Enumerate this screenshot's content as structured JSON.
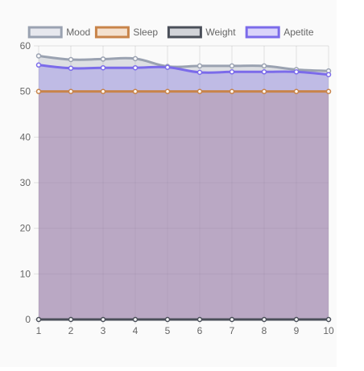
{
  "chart_data": {
    "type": "area",
    "x": [
      1,
      2,
      3,
      4,
      5,
      6,
      7,
      8,
      9,
      10
    ],
    "ylim": [
      0,
      60
    ],
    "yticks": [
      0,
      10,
      20,
      30,
      40,
      50,
      60
    ],
    "grid": true,
    "legend": "top",
    "series": [
      {
        "name": "Mood",
        "values": [
          57.8,
          57.0,
          57.1,
          57.2,
          55.5,
          55.6,
          55.6,
          55.6,
          54.8,
          54.5
        ],
        "stroke": "#9aa2b1",
        "fill": "#e7e8ee"
      },
      {
        "name": "Sleep",
        "values": [
          50,
          50,
          50,
          50,
          50,
          50,
          50,
          50,
          50,
          50
        ],
        "stroke": "#c8844a",
        "fill": "#f4e1cf"
      },
      {
        "name": "Weight",
        "values": [
          0,
          0,
          0,
          0,
          0,
          0,
          0,
          0,
          0,
          0
        ],
        "stroke": "#4a4f59",
        "fill": "#d2d4d9"
      },
      {
        "name": "Apetite",
        "values": [
          55.8,
          55.1,
          55.2,
          55.2,
          55.3,
          54.2,
          54.3,
          54.3,
          54.3,
          53.7
        ],
        "stroke": "#7b6bea",
        "fill": "#dad4fa"
      }
    ]
  }
}
